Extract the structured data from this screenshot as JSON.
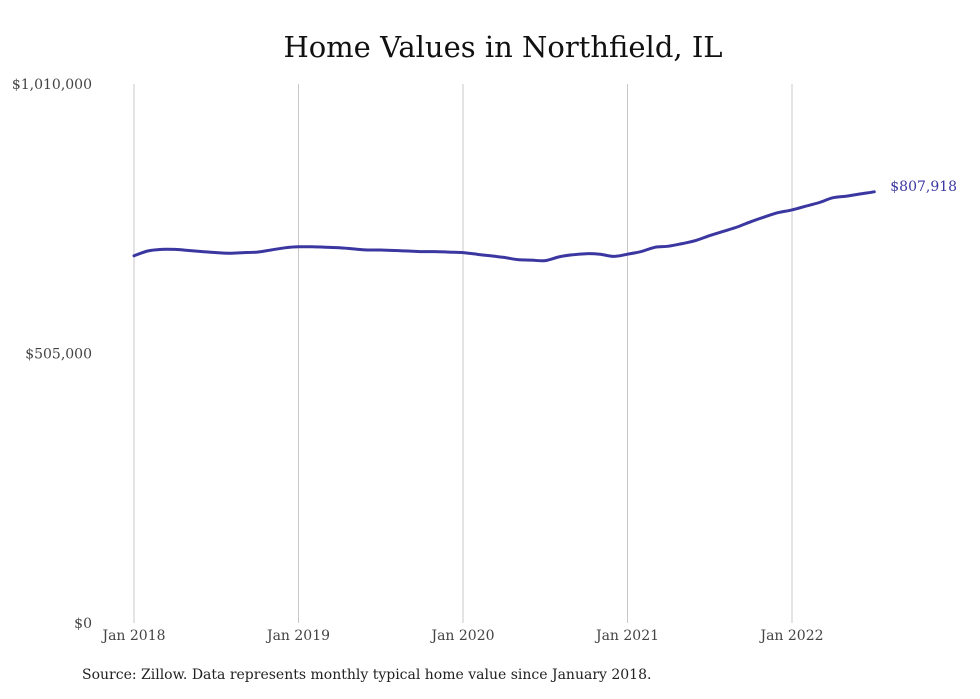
{
  "chart_data": {
    "type": "line",
    "title": "Home Values in Northfield, IL",
    "xlabel": "",
    "ylabel": "",
    "ylim": [
      0,
      1010000
    ],
    "yticks": [
      0,
      505000,
      1010000
    ],
    "ytick_labels": [
      "$0",
      "$505,000",
      "$1,010,000"
    ],
    "xticks": [
      "2018-01",
      "2019-01",
      "2020-01",
      "2021-01",
      "2022-01"
    ],
    "xtick_labels": [
      "Jan 2018",
      "Jan 2019",
      "Jan 2020",
      "Jan 2021",
      "Jan 2022"
    ],
    "grid": "vertical lines at x ticks",
    "line_color": "#3b37a0",
    "end_label": "$807,918",
    "series": [
      {
        "x": [
          "2018-01",
          "2018-02",
          "2018-03",
          "2018-04",
          "2018-05",
          "2018-06",
          "2018-07",
          "2018-08",
          "2018-09",
          "2018-10",
          "2018-11",
          "2018-12",
          "2019-01",
          "2019-02",
          "2019-03",
          "2019-04",
          "2019-05",
          "2019-06",
          "2019-07",
          "2019-08",
          "2019-09",
          "2019-10",
          "2019-11",
          "2019-12",
          "2020-01",
          "2020-02",
          "2020-03",
          "2020-04",
          "2020-05",
          "2020-06",
          "2020-07",
          "2020-08",
          "2020-09",
          "2020-10",
          "2020-11",
          "2020-12",
          "2021-01",
          "2021-02",
          "2021-03",
          "2021-04",
          "2021-05",
          "2021-06",
          "2021-07",
          "2021-08",
          "2021-09",
          "2021-10",
          "2021-11",
          "2021-12",
          "2022-01",
          "2022-02",
          "2022-03",
          "2022-04",
          "2022-05",
          "2022-06",
          "2022-07"
        ],
        "values": [
          688000,
          697000,
          700000,
          700000,
          698000,
          696000,
          694000,
          693000,
          694000,
          695000,
          699000,
          703000,
          705000,
          705000,
          704000,
          703000,
          701000,
          699000,
          699000,
          698000,
          697000,
          696000,
          696000,
          695000,
          694000,
          691000,
          688000,
          685000,
          681000,
          680000,
          679000,
          686000,
          690000,
          692000,
          691000,
          687000,
          691000,
          696000,
          704000,
          706000,
          711000,
          717000,
          726000,
          734000,
          742000,
          752000,
          761000,
          769000,
          774000,
          781000,
          788000,
          797000,
          800000,
          804000,
          807918
        ]
      }
    ]
  },
  "source_text": "Source: Zillow. Data represents monthly typical home value since January 2018."
}
